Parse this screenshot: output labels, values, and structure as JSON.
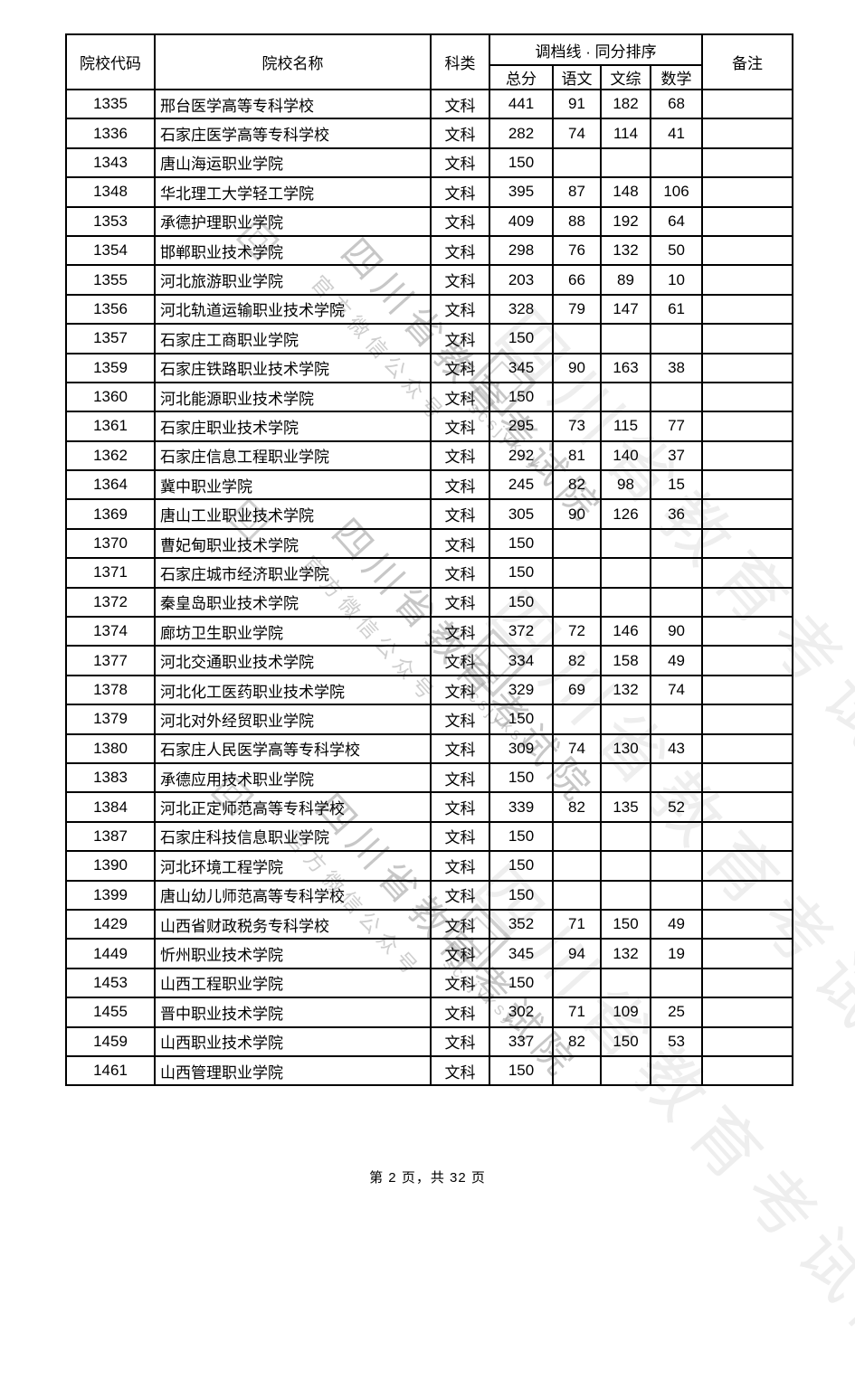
{
  "watermark": {
    "org": "四川省教育考试院",
    "sub": "官方微信公众号",
    "handle": "scsjyksy"
  },
  "table": {
    "headers": {
      "code": "院校代码",
      "name": "院校名称",
      "category": "科类",
      "score_group": "调档线 · 同分排序",
      "total": "总分",
      "chinese": "语文",
      "liberal_arts": "文综",
      "math": "数学",
      "remark": "备注"
    },
    "rows": [
      [
        "1335",
        "邢台医学高等专科学校",
        "文科",
        "441",
        "91",
        "182",
        "68",
        ""
      ],
      [
        "1336",
        "石家庄医学高等专科学校",
        "文科",
        "282",
        "74",
        "114",
        "41",
        ""
      ],
      [
        "1343",
        "唐山海运职业学院",
        "文科",
        "150",
        "",
        "",
        "",
        ""
      ],
      [
        "1348",
        "华北理工大学轻工学院",
        "文科",
        "395",
        "87",
        "148",
        "106",
        ""
      ],
      [
        "1353",
        "承德护理职业学院",
        "文科",
        "409",
        "88",
        "192",
        "64",
        ""
      ],
      [
        "1354",
        "邯郸职业技术学院",
        "文科",
        "298",
        "76",
        "132",
        "50",
        ""
      ],
      [
        "1355",
        "河北旅游职业学院",
        "文科",
        "203",
        "66",
        "89",
        "10",
        ""
      ],
      [
        "1356",
        "河北轨道运输职业技术学院",
        "文科",
        "328",
        "79",
        "147",
        "61",
        ""
      ],
      [
        "1357",
        "石家庄工商职业学院",
        "文科",
        "150",
        "",
        "",
        "",
        ""
      ],
      [
        "1359",
        "石家庄铁路职业技术学院",
        "文科",
        "345",
        "90",
        "163",
        "38",
        ""
      ],
      [
        "1360",
        "河北能源职业技术学院",
        "文科",
        "150",
        "",
        "",
        "",
        ""
      ],
      [
        "1361",
        "石家庄职业技术学院",
        "文科",
        "295",
        "73",
        "115",
        "77",
        ""
      ],
      [
        "1362",
        "石家庄信息工程职业学院",
        "文科",
        "292",
        "81",
        "140",
        "37",
        ""
      ],
      [
        "1364",
        "冀中职业学院",
        "文科",
        "245",
        "82",
        "98",
        "15",
        ""
      ],
      [
        "1369",
        "唐山工业职业技术学院",
        "文科",
        "305",
        "90",
        "126",
        "36",
        ""
      ],
      [
        "1370",
        "曹妃甸职业技术学院",
        "文科",
        "150",
        "",
        "",
        "",
        ""
      ],
      [
        "1371",
        "石家庄城市经济职业学院",
        "文科",
        "150",
        "",
        "",
        "",
        ""
      ],
      [
        "1372",
        "秦皇岛职业技术学院",
        "文科",
        "150",
        "",
        "",
        "",
        ""
      ],
      [
        "1374",
        "廊坊卫生职业学院",
        "文科",
        "372",
        "72",
        "146",
        "90",
        ""
      ],
      [
        "1377",
        "河北交通职业技术学院",
        "文科",
        "334",
        "82",
        "158",
        "49",
        ""
      ],
      [
        "1378",
        "河北化工医药职业技术学院",
        "文科",
        "329",
        "69",
        "132",
        "74",
        ""
      ],
      [
        "1379",
        "河北对外经贸职业学院",
        "文科",
        "150",
        "",
        "",
        "",
        ""
      ],
      [
        "1380",
        "石家庄人民医学高等专科学校",
        "文科",
        "309",
        "74",
        "130",
        "43",
        ""
      ],
      [
        "1383",
        "承德应用技术职业学院",
        "文科",
        "150",
        "",
        "",
        "",
        ""
      ],
      [
        "1384",
        "河北正定师范高等专科学校",
        "文科",
        "339",
        "82",
        "135",
        "52",
        ""
      ],
      [
        "1387",
        "石家庄科技信息职业学院",
        "文科",
        "150",
        "",
        "",
        "",
        ""
      ],
      [
        "1390",
        "河北环境工程学院",
        "文科",
        "150",
        "",
        "",
        "",
        ""
      ],
      [
        "1399",
        "唐山幼儿师范高等专科学校",
        "文科",
        "150",
        "",
        "",
        "",
        ""
      ],
      [
        "1429",
        "山西省财政税务专科学校",
        "文科",
        "352",
        "71",
        "150",
        "49",
        ""
      ],
      [
        "1449",
        "忻州职业技术学院",
        "文科",
        "345",
        "94",
        "132",
        "19",
        ""
      ],
      [
        "1453",
        "山西工程职业学院",
        "文科",
        "150",
        "",
        "",
        "",
        ""
      ],
      [
        "1455",
        "晋中职业技术学院",
        "文科",
        "302",
        "71",
        "109",
        "25",
        ""
      ],
      [
        "1459",
        "山西职业技术学院",
        "文科",
        "337",
        "82",
        "150",
        "53",
        ""
      ],
      [
        "1461",
        "山西管理职业学院",
        "文科",
        "150",
        "",
        "",
        "",
        ""
      ]
    ]
  },
  "footer": {
    "text": "第 2 页，共 32 页"
  }
}
